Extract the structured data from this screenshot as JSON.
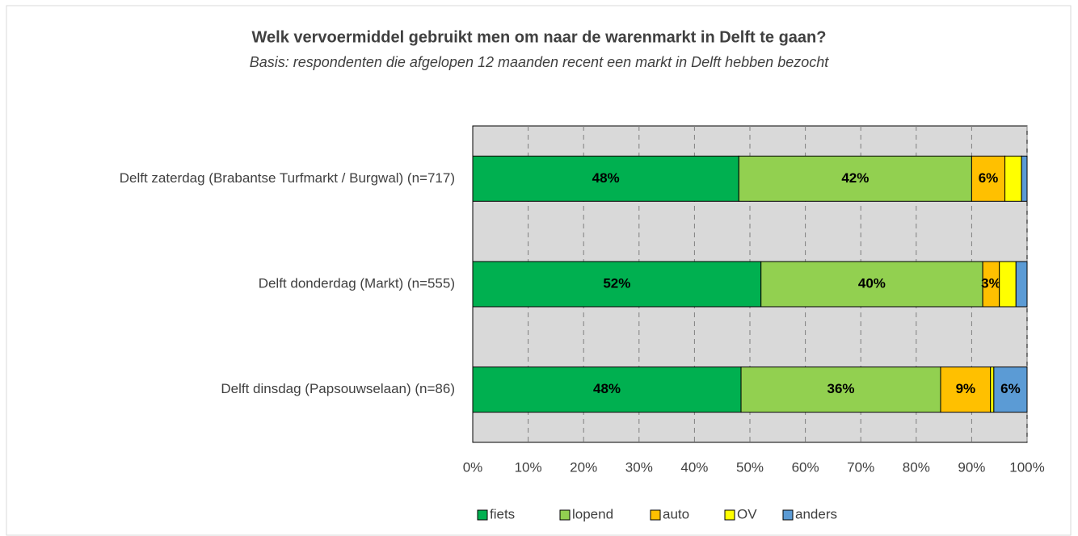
{
  "chart_data": {
    "type": "stacked_barh",
    "title": "Welk vervoermiddel gebruikt men om naar de warenmarkt in Delft te gaan?",
    "subtitle": "Basis: respondenten die afgelopen 12 maanden recent een markt in Delft hebben bezocht",
    "categories": [
      "Delft zaterdag (Brabantse Turfmarkt / Burgwal) (n=717)",
      "Delft donderdag (Markt) (n=555)",
      "Delft dinsdag (Papsouwselaan) (n=86)"
    ],
    "series": [
      {
        "name": "fiets",
        "color": "#00b050",
        "values": [
          48,
          52,
          48.4
        ],
        "value_labels": [
          "48%",
          "52%",
          "48%"
        ]
      },
      {
        "name": "lopend",
        "color": "#92d050",
        "values": [
          42,
          40,
          36
        ],
        "value_labels": [
          "42%",
          "40%",
          "36%"
        ]
      },
      {
        "name": "auto",
        "color": "#ffc000",
        "values": [
          6,
          3,
          9
        ],
        "value_labels": [
          "6%",
          "3%",
          "9%"
        ]
      },
      {
        "name": "OV",
        "color": "#ffff00",
        "values": [
          3,
          3,
          0.6
        ],
        "value_labels": [
          null,
          null,
          null
        ]
      },
      {
        "name": "anders",
        "color": "#5b9bd5",
        "values": [
          1,
          2,
          6
        ],
        "value_labels": [
          null,
          null,
          "6%"
        ]
      }
    ],
    "xlim": [
      0,
      100
    ],
    "xticks": [
      {
        "value": 0,
        "label": "0%"
      },
      {
        "value": 10,
        "label": "10%"
      },
      {
        "value": 20,
        "label": "20%"
      },
      {
        "value": 30,
        "label": "30%"
      },
      {
        "value": 40,
        "label": "40%"
      },
      {
        "value": 50,
        "label": "50%"
      },
      {
        "value": 60,
        "label": "60%"
      },
      {
        "value": 70,
        "label": "70%"
      },
      {
        "value": 80,
        "label": "80%"
      },
      {
        "value": 90,
        "label": "90%"
      },
      {
        "value": 100,
        "label": "100%"
      }
    ],
    "grid": true,
    "legend": "bottom"
  }
}
